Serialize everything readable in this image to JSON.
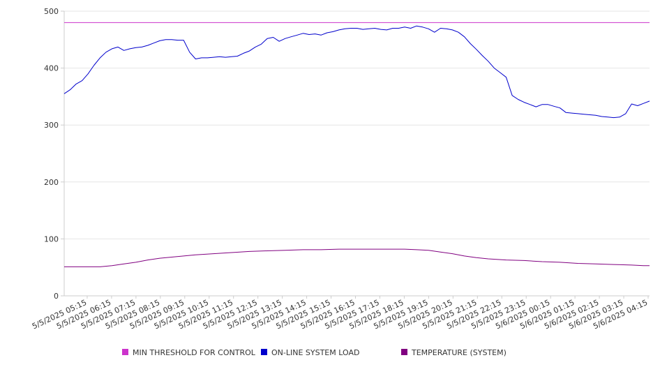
{
  "chart_data": {
    "type": "line",
    "title": "",
    "xlabel": "",
    "ylabel": "",
    "ylim": [
      0,
      500
    ],
    "yticks": [
      0,
      100,
      200,
      300,
      400,
      500
    ],
    "xlim": [
      0,
      96
    ],
    "grid": true,
    "legend_position": "bottom",
    "x_tick_labels": [
      "5/5/2025 05:15",
      "5/5/2025 06:15",
      "5/5/2025 07:15",
      "5/5/2025 08:15",
      "5/5/2025 09:15",
      "5/5/2025 10:15",
      "5/5/2025 11:15",
      "5/5/2025 12:15",
      "5/5/2025 13:15",
      "5/5/2025 14:15",
      "5/5/2025 15:15",
      "5/5/2025 16:15",
      "5/5/2025 17:15",
      "5/5/2025 18:15",
      "5/5/2025 19:15",
      "5/5/2025 20:15",
      "5/5/2025 21:15",
      "5/5/2025 22:15",
      "5/5/2025 23:15",
      "5/6/2025 00:15",
      "5/6/2025 01:15",
      "5/6/2025 02:15",
      "5/6/2025 03:15",
      "5/6/2025 04:15"
    ],
    "series": [
      {
        "name": "MIN THRESHOLD FOR CONTROL",
        "color": "#cc33cc",
        "line_style": "constant",
        "value": 480
      },
      {
        "name": "ON-LINE SYSTEM LOAD",
        "color": "#0000cc",
        "points": [
          [
            0,
            355
          ],
          [
            1,
            362
          ],
          [
            2,
            372
          ],
          [
            3,
            378
          ],
          [
            4,
            390
          ],
          [
            5,
            405
          ],
          [
            6,
            418
          ],
          [
            7,
            428
          ],
          [
            8,
            434
          ],
          [
            9,
            437
          ],
          [
            10,
            431
          ],
          [
            11,
            434
          ],
          [
            12,
            436
          ],
          [
            13,
            437
          ],
          [
            14,
            440
          ],
          [
            15,
            444
          ],
          [
            16,
            448
          ],
          [
            17,
            450
          ],
          [
            18,
            450
          ],
          [
            19,
            449
          ],
          [
            20,
            449
          ],
          [
            21,
            428
          ],
          [
            22,
            416
          ],
          [
            23,
            418
          ],
          [
            24,
            418
          ],
          [
            25,
            419
          ],
          [
            26,
            420
          ],
          [
            27,
            419
          ],
          [
            28,
            420
          ],
          [
            29,
            421
          ],
          [
            30,
            426
          ],
          [
            31,
            430
          ],
          [
            32,
            437
          ],
          [
            33,
            442
          ],
          [
            34,
            452
          ],
          [
            35,
            454
          ],
          [
            36,
            447
          ],
          [
            37,
            452
          ],
          [
            38,
            455
          ],
          [
            39,
            458
          ],
          [
            40,
            461
          ],
          [
            41,
            459
          ],
          [
            42,
            460
          ],
          [
            43,
            458
          ],
          [
            44,
            462
          ],
          [
            45,
            464
          ],
          [
            46,
            467
          ],
          [
            47,
            469
          ],
          [
            48,
            470
          ],
          [
            49,
            470
          ],
          [
            50,
            468
          ],
          [
            51,
            469
          ],
          [
            52,
            470
          ],
          [
            53,
            468
          ],
          [
            54,
            467
          ],
          [
            55,
            470
          ],
          [
            56,
            470
          ],
          [
            57,
            472
          ],
          [
            58,
            470
          ],
          [
            59,
            474
          ],
          [
            60,
            472
          ],
          [
            61,
            469
          ],
          [
            62,
            463
          ],
          [
            63,
            470
          ],
          [
            64,
            469
          ],
          [
            65,
            467
          ],
          [
            66,
            463
          ],
          [
            67,
            455
          ],
          [
            68,
            443
          ],
          [
            69,
            433
          ],
          [
            70,
            422
          ],
          [
            71,
            412
          ],
          [
            72,
            400
          ],
          [
            73,
            392
          ],
          [
            74,
            384
          ],
          [
            75,
            352
          ],
          [
            76,
            345
          ],
          [
            77,
            340
          ],
          [
            78,
            336
          ],
          [
            79,
            332
          ],
          [
            80,
            336
          ],
          [
            81,
            336
          ],
          [
            82,
            333
          ],
          [
            83,
            330
          ],
          [
            84,
            322
          ],
          [
            85,
            321
          ],
          [
            86,
            320
          ],
          [
            87,
            319
          ],
          [
            88,
            318
          ],
          [
            89,
            317
          ],
          [
            90,
            315
          ],
          [
            91,
            314
          ],
          [
            92,
            313
          ],
          [
            93,
            314
          ],
          [
            94,
            320
          ],
          [
            95,
            337
          ],
          [
            96,
            334
          ],
          [
            97,
            338
          ],
          [
            98,
            342
          ]
        ]
      },
      {
        "name": "TEMPERATURE (SYSTEM)",
        "color": "#800080",
        "points": [
          [
            0,
            51
          ],
          [
            3,
            51
          ],
          [
            6,
            51
          ],
          [
            8,
            53
          ],
          [
            10,
            56
          ],
          [
            12,
            59
          ],
          [
            14,
            63
          ],
          [
            16,
            66
          ],
          [
            18,
            68
          ],
          [
            20,
            70
          ],
          [
            22,
            72
          ],
          [
            25,
            74
          ],
          [
            28,
            76
          ],
          [
            31,
            78
          ],
          [
            34,
            79
          ],
          [
            37,
            80
          ],
          [
            40,
            81
          ],
          [
            43,
            81
          ],
          [
            46,
            82
          ],
          [
            49,
            82
          ],
          [
            52,
            82
          ],
          [
            55,
            82
          ],
          [
            57,
            82
          ],
          [
            59,
            81
          ],
          [
            61,
            80
          ],
          [
            63,
            77
          ],
          [
            65,
            74
          ],
          [
            67,
            70
          ],
          [
            69,
            67
          ],
          [
            71,
            65
          ],
          [
            74,
            63
          ],
          [
            77,
            62
          ],
          [
            80,
            60
          ],
          [
            83,
            59
          ],
          [
            86,
            57
          ],
          [
            89,
            56
          ],
          [
            92,
            55
          ],
          [
            95,
            54
          ],
          [
            97,
            53
          ],
          [
            98,
            53
          ]
        ]
      }
    ]
  }
}
